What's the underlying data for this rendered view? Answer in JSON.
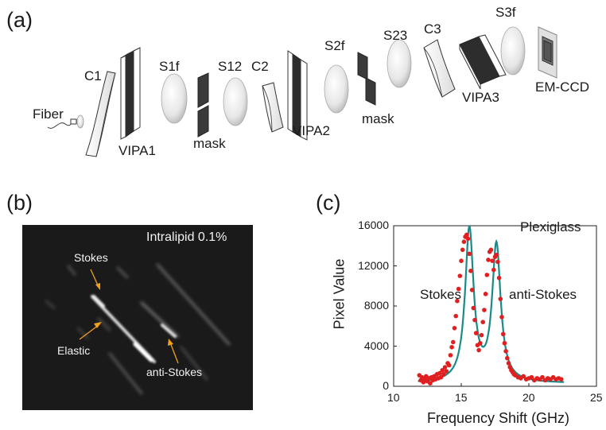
{
  "panels": {
    "a": "(a)",
    "b": "(b)",
    "c": "(c)"
  },
  "setup": {
    "fiber": "Fiber",
    "c1": "C1",
    "vipa1": "VIPA1",
    "s1f": "S1f",
    "mask1": "mask",
    "s12": "S12",
    "c2": "C2",
    "vipa2": "VIPA2",
    "s2f": "S2f",
    "mask2": "mask",
    "s23": "S23",
    "c3": "C3",
    "vipa3": "VIPA3",
    "s3f": "S3f",
    "emccd": "EM-CCD"
  },
  "camera_image": {
    "sample": "Intralipid 0.1%",
    "stokes": "Stokes",
    "elastic": "Elastic",
    "anti_stokes": "anti-Stokes",
    "background": "#1a1a1a",
    "arrow_color": "#f0a020"
  },
  "chart_data": {
    "type": "scatter",
    "title": "Plexiglass",
    "xlabel": "Frequency Shift (GHz)",
    "ylabel": "Pixel Value",
    "xlim": [
      10,
      25
    ],
    "ylim": [
      0,
      16000
    ],
    "xticks": [
      10,
      15,
      20,
      25
    ],
    "yticks": [
      0,
      4000,
      8000,
      12000,
      16000
    ],
    "annotations": [
      "Stokes",
      "anti-Stokes"
    ],
    "marker_color": "#e02020",
    "fit_color": "#1a8a8a",
    "peaks": [
      {
        "center": 15.6,
        "height": 15200,
        "hwhm": 0.38
      },
      {
        "center": 17.6,
        "height": 13600,
        "hwhm": 0.38
      }
    ],
    "baseline": 300,
    "series": [
      {
        "kind": "points",
        "x": [
          11.9,
          12.0,
          12.1,
          12.2,
          12.3,
          12.4,
          12.5,
          12.6,
          12.7,
          12.8,
          12.9,
          13.0,
          13.1,
          13.2,
          13.3,
          13.4,
          13.5,
          13.6,
          13.7,
          13.8,
          13.9,
          14.0,
          14.1,
          14.2,
          14.3,
          14.4,
          14.5,
          14.6,
          14.7,
          14.8,
          14.9,
          15.0,
          15.1,
          15.2,
          15.3,
          15.4,
          15.5,
          15.6,
          15.7,
          15.8,
          15.9,
          16.0,
          16.1,
          16.2,
          16.3,
          16.4,
          16.5,
          16.6,
          16.7,
          16.8,
          16.9,
          17.0,
          17.1,
          17.2,
          17.3,
          17.4,
          17.5,
          17.6,
          17.7,
          17.8,
          17.9,
          18.0,
          18.1,
          18.2,
          18.3,
          18.4,
          18.5,
          18.6,
          18.7,
          18.8,
          18.9,
          19.0,
          19.2,
          19.4,
          19.6,
          19.8,
          20.0,
          20.2,
          20.4,
          20.6,
          20.8,
          21.0,
          21.2,
          21.4,
          21.6,
          21.8,
          22.0,
          22.2,
          22.4
        ],
        "y": [
          1100,
          600,
          900,
          400,
          700,
          1000,
          500,
          800,
          300,
          900,
          600,
          1000,
          700,
          1200,
          800,
          1300,
          900,
          1600,
          1200,
          1900,
          1500,
          2300,
          2100,
          3100,
          3900,
          4400,
          5800,
          7000,
          8500,
          9700,
          11000,
          12500,
          13600,
          14400,
          14900,
          15100,
          14700,
          13200,
          11500,
          9600,
          7800,
          6600,
          5300,
          4100,
          3600,
          4300,
          5100,
          6400,
          7600,
          9200,
          11100,
          12600,
          13400,
          13600,
          12500,
          11600,
          12900,
          13100,
          12400,
          10800,
          8700,
          6900,
          5200,
          4300,
          3500,
          2800,
          2300,
          1900,
          1600,
          1400,
          1200,
          1100,
          900,
          800,
          1000,
          700,
          800,
          900,
          600,
          800,
          700,
          900,
          600,
          800,
          700,
          900,
          700,
          800,
          700
        ]
      }
    ]
  }
}
